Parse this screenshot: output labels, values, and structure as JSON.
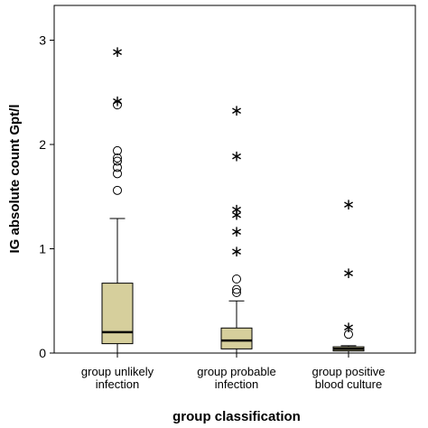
{
  "chart_data": {
    "type": "box",
    "title": "",
    "xlabel": "group classification",
    "ylabel": "IG absolute count Gpt/l",
    "ylim": [
      0,
      3.3
    ],
    "yticks": [
      0,
      1,
      2,
      3
    ],
    "grid": false,
    "box_fill": "#d6cf9c",
    "categories": [
      {
        "lines": [
          "group unlikely",
          "infection"
        ]
      },
      {
        "lines": [
          "group probable",
          "infection"
        ]
      },
      {
        "lines": [
          "group positive",
          "blood culture"
        ]
      }
    ],
    "boxes": [
      {
        "whisker_low": 0.0,
        "q1": 0.09,
        "median": 0.2,
        "q3": 0.67,
        "whisker_high": 1.29,
        "outliers": [
          1.56,
          1.72,
          1.78,
          1.84,
          1.87,
          1.94,
          2.38
        ],
        "extremes": [
          2.42,
          2.89
        ]
      },
      {
        "whisker_low": 0.0,
        "q1": 0.04,
        "median": 0.12,
        "q3": 0.24,
        "whisker_high": 0.5,
        "outliers": [
          0.58,
          0.61,
          0.71
        ],
        "extremes": [
          0.98,
          1.17,
          1.33,
          1.38,
          1.89,
          2.33
        ]
      },
      {
        "whisker_low": 0.0,
        "q1": 0.02,
        "median": 0.04,
        "q3": 0.06,
        "whisker_high": 0.07,
        "outliers": [
          0.18
        ],
        "extremes": [
          0.25,
          0.77,
          1.43
        ]
      }
    ]
  }
}
